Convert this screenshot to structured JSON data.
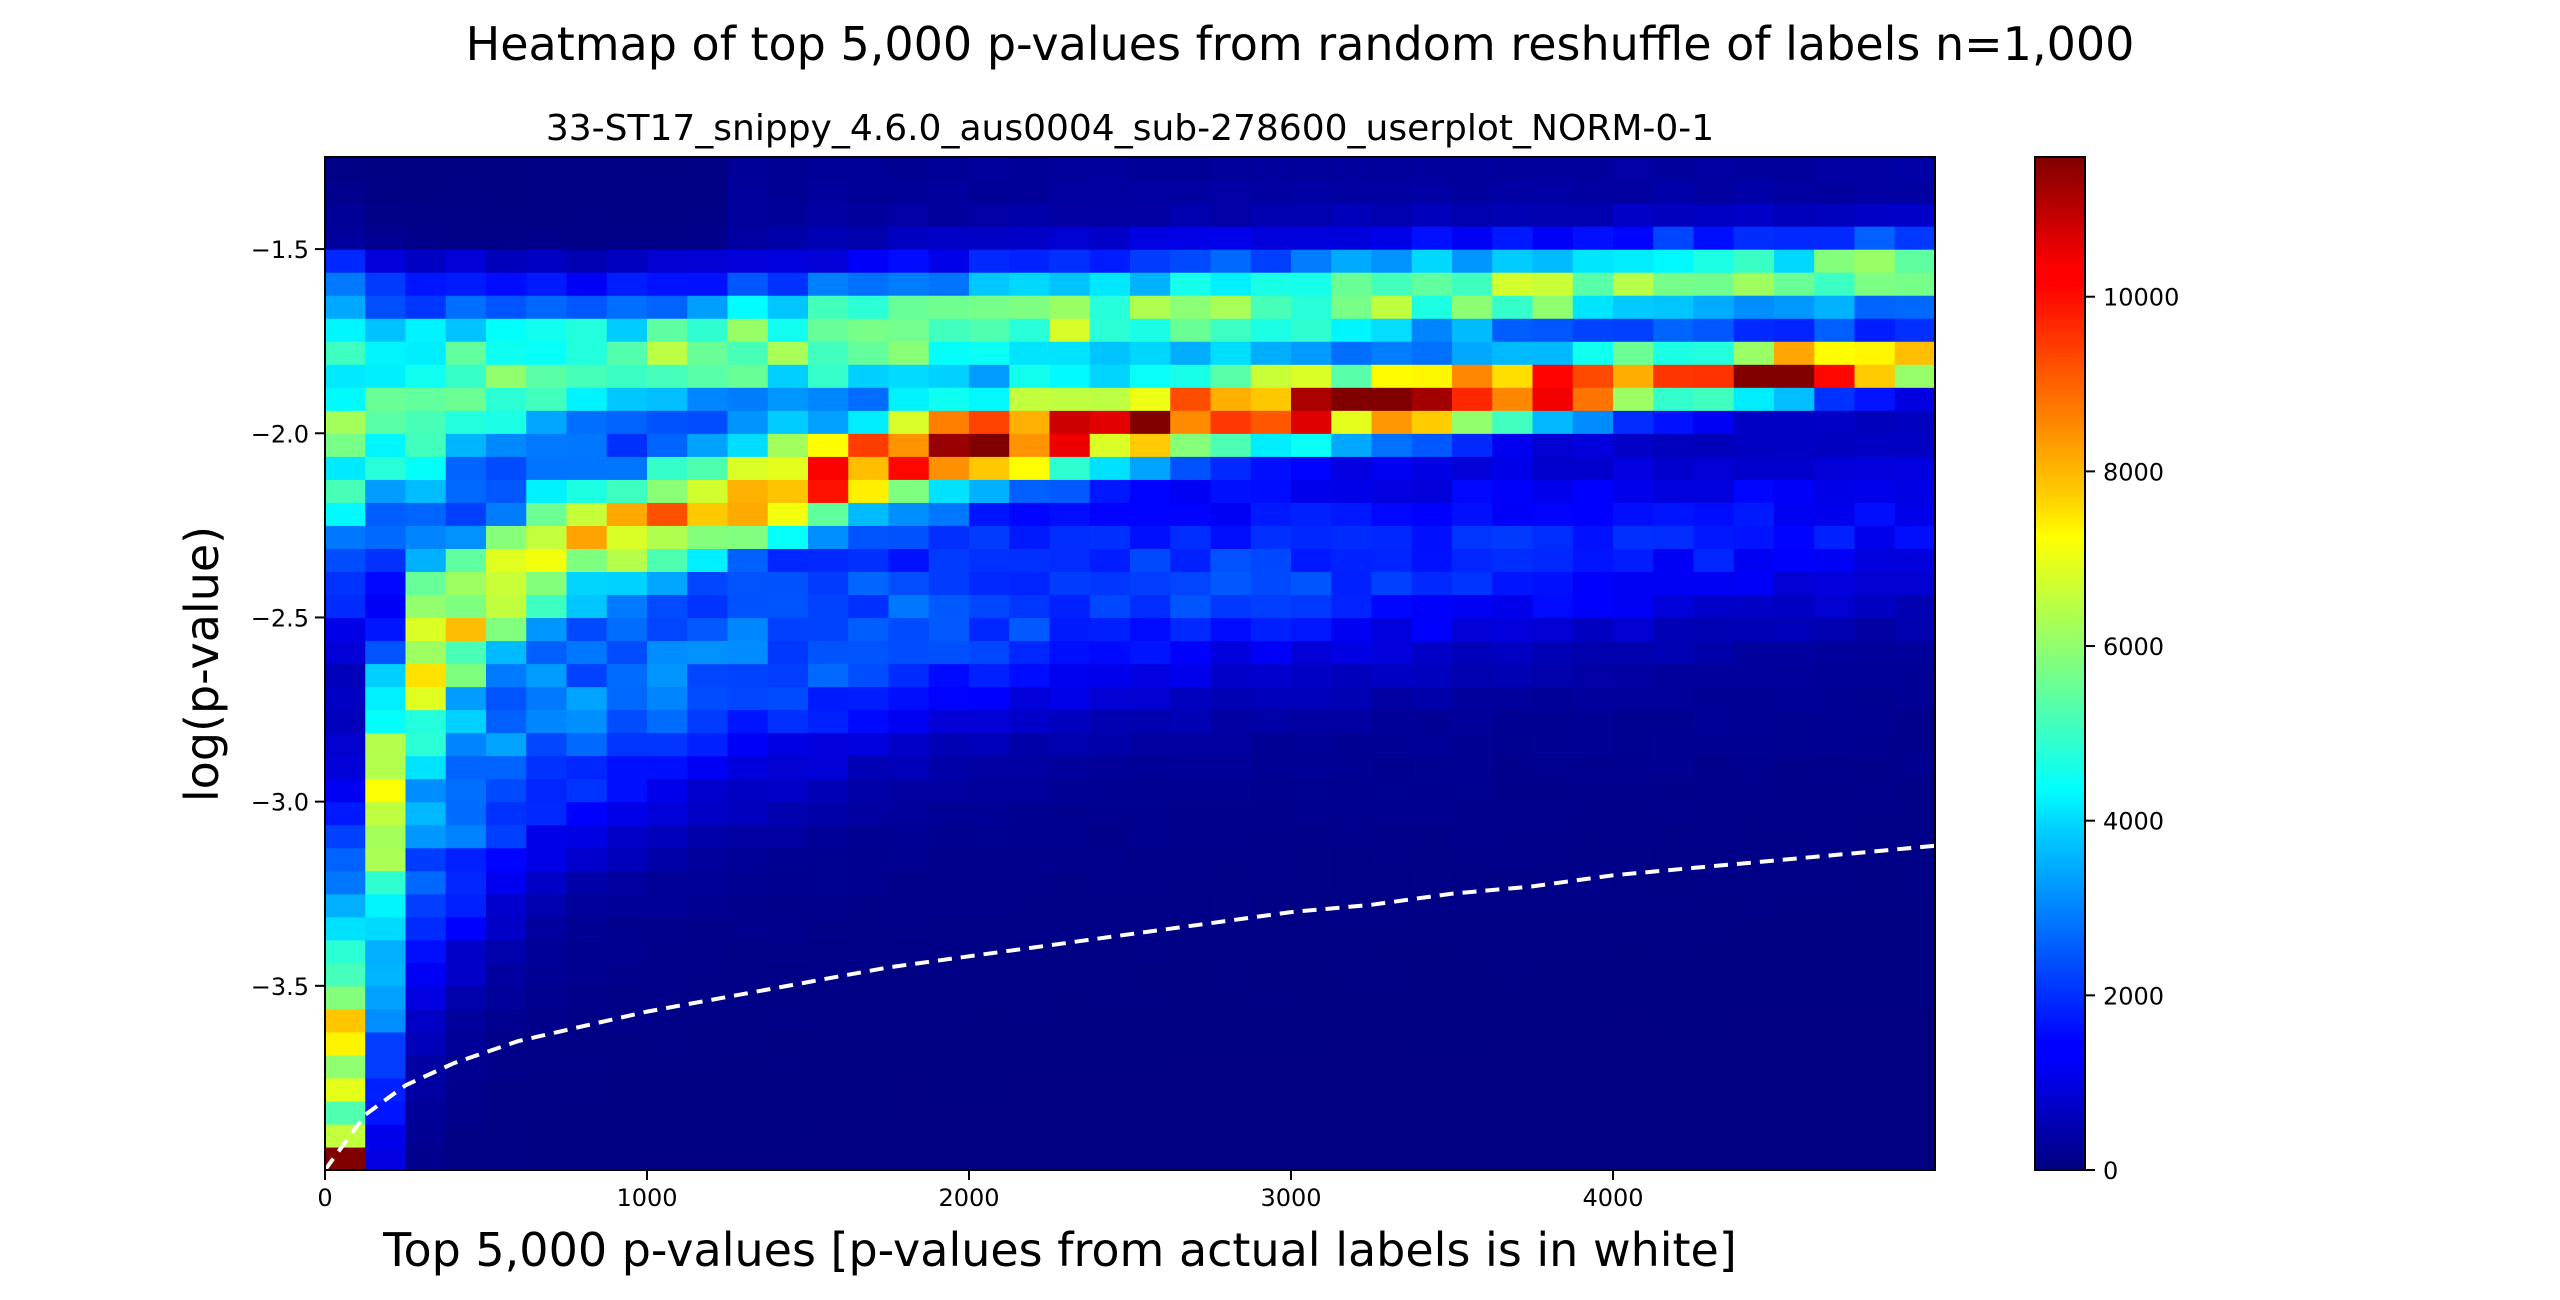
{
  "chart_data": {
    "type": "heatmap",
    "suptitle": "Heatmap of top 5,000 p-values from random reshuffle of labels n=1,000",
    "title": "33-ST17_snippy_4.6.0_aus0004_sub-278600_userplot_NORM-0-1",
    "xlabel": "Top 5,000 p-values [p-values from actual labels is in white]",
    "ylabel": "log(p-value)",
    "xlim": [
      0,
      5000
    ],
    "ylim": [
      -4.0,
      -1.25
    ],
    "x_bin_width": 125,
    "y_bin_width": 0.0625,
    "xticks": [
      0,
      1000,
      2000,
      3000,
      4000
    ],
    "xtick_labels": [
      "0",
      "1000",
      "2000",
      "3000",
      "4000"
    ],
    "yticks": [
      -3.5,
      -3.0,
      -2.5,
      -2.0,
      -1.5
    ],
    "ytick_labels": [
      "−3.5",
      "−3.0",
      "−2.5",
      "−2.0",
      "−1.5"
    ],
    "colormap": "jet",
    "color_range": [
      0,
      11600
    ],
    "colorbar_ticks": [
      0,
      2000,
      4000,
      6000,
      8000,
      10000
    ],
    "colorbar_tick_labels": [
      "0",
      "2000",
      "4000",
      "6000",
      "8000",
      "10000"
    ],
    "notable_cells": [
      {
        "x_range": [
          0,
          125
        ],
        "y_range": [
          -4.0,
          -3.9375
        ],
        "count": 11600
      }
    ],
    "ridges": [
      {
        "description": "main ridge",
        "points": [
          [
            0,
            -3.95
          ],
          [
            250,
            -2.6
          ],
          [
            700,
            -2.3
          ],
          [
            1500,
            -2.12
          ],
          [
            2000,
            -2.03
          ],
          [
            2500,
            -1.97
          ],
          [
            3000,
            -1.93
          ],
          [
            3500,
            -1.9
          ],
          [
            4000,
            -1.86
          ],
          [
            5000,
            -1.8
          ]
        ],
        "peak_count": 9800
      },
      {
        "description": "upper band",
        "points": [
          [
            0,
            -2.0
          ],
          [
            500,
            -1.85
          ],
          [
            1500,
            -1.75
          ],
          [
            2500,
            -1.68
          ],
          [
            3500,
            -1.62
          ],
          [
            5000,
            -1.56
          ]
        ],
        "peak_count": 6000
      }
    ],
    "series": [
      {
        "style": "white dashed",
        "x": [
          0,
          125,
          250,
          400,
          600,
          800,
          1000,
          1250,
          1500,
          1750,
          2000,
          2250,
          2500,
          2750,
          3000,
          3250,
          3500,
          3750,
          4000,
          4250,
          4500,
          4750,
          5000
        ],
        "y": [
          -4.0,
          -3.85,
          -3.77,
          -3.71,
          -3.65,
          -3.61,
          -3.57,
          -3.53,
          -3.49,
          -3.45,
          -3.42,
          -3.39,
          -3.36,
          -3.33,
          -3.3,
          -3.28,
          -3.25,
          -3.23,
          -3.2,
          -3.18,
          -3.16,
          -3.14,
          -3.12
        ]
      }
    ]
  }
}
